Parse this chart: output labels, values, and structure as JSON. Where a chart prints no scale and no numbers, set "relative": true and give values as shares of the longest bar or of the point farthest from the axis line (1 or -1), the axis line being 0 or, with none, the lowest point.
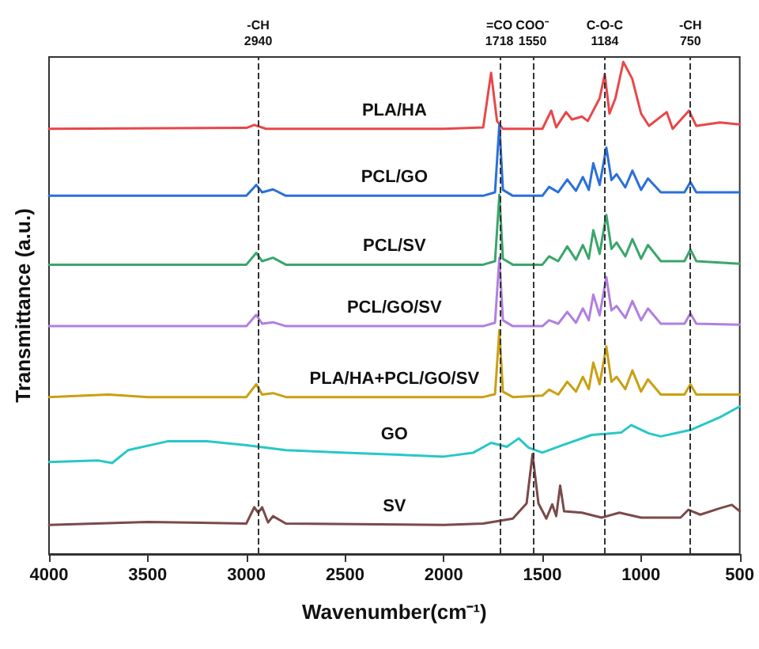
{
  "chart_data": {
    "type": "line",
    "relative": true,
    "xlabel": "Wavenumber(cm⁻¹)",
    "ylabel": "Transmittance (a.u.)",
    "xlim": [
      4000,
      500
    ],
    "xticks": [
      4000,
      3500,
      3000,
      2500,
      2000,
      1500,
      1000,
      500
    ],
    "grid": false,
    "legend": false,
    "marker": "none",
    "line_style": "solid",
    "ref_lines": [
      {
        "axis": "x",
        "value": 2940,
        "label": "-CH\n2940",
        "color": "#333333",
        "line_style": "dashed"
      },
      {
        "axis": "x",
        "value": 1718,
        "label": "=CO\n1718",
        "color": "#333333",
        "line_style": "dashed"
      },
      {
        "axis": "x",
        "value": 1550,
        "label": "COO⁻\n1550",
        "color": "#333333",
        "line_style": "dashed"
      },
      {
        "axis": "x",
        "value": 1184,
        "label": "C-O-C\n1184",
        "color": "#333333",
        "line_style": "dashed"
      },
      {
        "axis": "x",
        "value": 750,
        "label": "-CH\n750",
        "color": "#333333",
        "line_style": "dashed"
      }
    ],
    "series": [
      {
        "name": "PLA/HA",
        "color": "#e8474a",
        "x": [
          4000,
          3000,
          2960,
          2900,
          2000,
          1800,
          1760,
          1730,
          1700,
          1500,
          1455,
          1430,
          1380,
          1350,
          1300,
          1270,
          1210,
          1184,
          1160,
          1130,
          1090,
          1045,
          1000,
          960,
          870,
          840,
          757,
          720,
          600,
          500
        ],
        "values": [
          0.864,
          0.866,
          0.872,
          0.864,
          0.864,
          0.867,
          0.978,
          0.88,
          0.864,
          0.864,
          0.901,
          0.867,
          0.898,
          0.883,
          0.889,
          0.88,
          0.926,
          0.975,
          0.895,
          0.926,
          1,
          0.966,
          0.895,
          0.87,
          0.898,
          0.864,
          0.901,
          0.87,
          0.877,
          0.873
        ]
      },
      {
        "name": "PCL/GO",
        "color": "#2a6fdb",
        "x": [
          4000,
          3000,
          2950,
          2920,
          2865,
          2800,
          1800,
          1740,
          1718,
          1700,
          1650,
          1500,
          1466,
          1420,
          1374,
          1330,
          1295,
          1265,
          1242,
          1210,
          1176,
          1150,
          1124,
          1080,
          1044,
          1000,
          965,
          900,
          780,
          750,
          720,
          500
        ],
        "values": [
          0.728,
          0.728,
          0.75,
          0.735,
          0.741,
          0.728,
          0.728,
          0.735,
          0.873,
          0.74,
          0.728,
          0.728,
          0.746,
          0.735,
          0.761,
          0.738,
          0.766,
          0.74,
          0.794,
          0.75,
          0.826,
          0.76,
          0.772,
          0.745,
          0.779,
          0.74,
          0.763,
          0.735,
          0.735,
          0.756,
          0.735,
          0.735
        ]
      },
      {
        "name": "PCL/SV",
        "color": "#3aa66a",
        "x": [
          4000,
          3000,
          2950,
          2920,
          2865,
          2800,
          1800,
          1740,
          1718,
          1700,
          1650,
          1500,
          1466,
          1420,
          1374,
          1330,
          1295,
          1265,
          1242,
          1210,
          1176,
          1150,
          1124,
          1080,
          1044,
          1000,
          965,
          900,
          780,
          750,
          720,
          500
        ],
        "values": [
          0.588,
          0.588,
          0.612,
          0.595,
          0.602,
          0.588,
          0.588,
          0.595,
          0.73,
          0.6,
          0.588,
          0.588,
          0.605,
          0.595,
          0.625,
          0.598,
          0.628,
          0.6,
          0.658,
          0.61,
          0.689,
          0.62,
          0.633,
          0.605,
          0.64,
          0.6,
          0.628,
          0.595,
          0.595,
          0.619,
          0.595,
          0.59
        ]
      },
      {
        "name": "PCL/GO/SV",
        "color": "#b07fe0",
        "x": [
          4000,
          3000,
          2950,
          2920,
          2865,
          2800,
          1800,
          1740,
          1718,
          1700,
          1650,
          1500,
          1466,
          1420,
          1374,
          1330,
          1295,
          1265,
          1242,
          1210,
          1176,
          1150,
          1124,
          1080,
          1044,
          1000,
          965,
          900,
          780,
          750,
          720,
          500
        ],
        "values": [
          0.463,
          0.463,
          0.486,
          0.468,
          0.471,
          0.463,
          0.463,
          0.47,
          0.602,
          0.475,
          0.463,
          0.463,
          0.475,
          0.468,
          0.492,
          0.47,
          0.499,
          0.475,
          0.527,
          0.485,
          0.563,
          0.495,
          0.504,
          0.48,
          0.514,
          0.475,
          0.499,
          0.468,
          0.468,
          0.489,
          0.468,
          0.466
        ]
      },
      {
        "name": "PLA/HA+PCL/GO/SV",
        "color": "#c9a012",
        "x": [
          4000,
          3700,
          3500,
          3000,
          2950,
          2920,
          2865,
          2800,
          1800,
          1740,
          1718,
          1700,
          1650,
          1500,
          1466,
          1420,
          1374,
          1330,
          1295,
          1265,
          1242,
          1210,
          1176,
          1150,
          1124,
          1080,
          1044,
          1000,
          965,
          900,
          780,
          750,
          720,
          500
        ],
        "values": [
          0.319,
          0.324,
          0.319,
          0.319,
          0.345,
          0.324,
          0.327,
          0.319,
          0.319,
          0.325,
          0.455,
          0.33,
          0.319,
          0.322,
          0.334,
          0.324,
          0.35,
          0.33,
          0.36,
          0.335,
          0.389,
          0.345,
          0.422,
          0.35,
          0.36,
          0.335,
          0.373,
          0.33,
          0.355,
          0.324,
          0.324,
          0.345,
          0.324,
          0.324
        ]
      },
      {
        "name": "GO",
        "color": "#28c7c7",
        "x": [
          4000,
          3750,
          3680,
          3600,
          3400,
          3200,
          3000,
          2800,
          2500,
          2000,
          1850,
          1760,
          1680,
          1620,
          1570,
          1500,
          1400,
          1250,
          1100,
          1050,
          960,
          900,
          750,
          600,
          500
        ],
        "values": [
          0.187,
          0.19,
          0.185,
          0.211,
          0.229,
          0.229,
          0.221,
          0.211,
          0.206,
          0.198,
          0.206,
          0.226,
          0.218,
          0.235,
          0.216,
          0.206,
          0.221,
          0.242,
          0.247,
          0.262,
          0.245,
          0.239,
          0.252,
          0.278,
          0.3
        ]
      },
      {
        "name": "SV",
        "color": "#7a4a4a",
        "x": [
          4000,
          3500,
          3000,
          2960,
          2940,
          2920,
          2890,
          2865,
          2800,
          2000,
          1800,
          1650,
          1580,
          1550,
          1520,
          1480,
          1450,
          1430,
          1410,
          1390,
          1300,
          1200,
          1110,
          1000,
          800,
          760,
          700,
          600,
          540,
          500
        ],
        "values": [
          0.059,
          0.065,
          0.062,
          0.095,
          0.084,
          0.095,
          0.064,
          0.077,
          0.062,
          0.059,
          0.062,
          0.072,
          0.103,
          0.203,
          0.103,
          0.072,
          0.101,
          0.077,
          0.139,
          0.087,
          0.084,
          0.074,
          0.084,
          0.074,
          0.074,
          0.09,
          0.08,
          0.093,
          0.1,
          0.087
        ]
      }
    ]
  }
}
